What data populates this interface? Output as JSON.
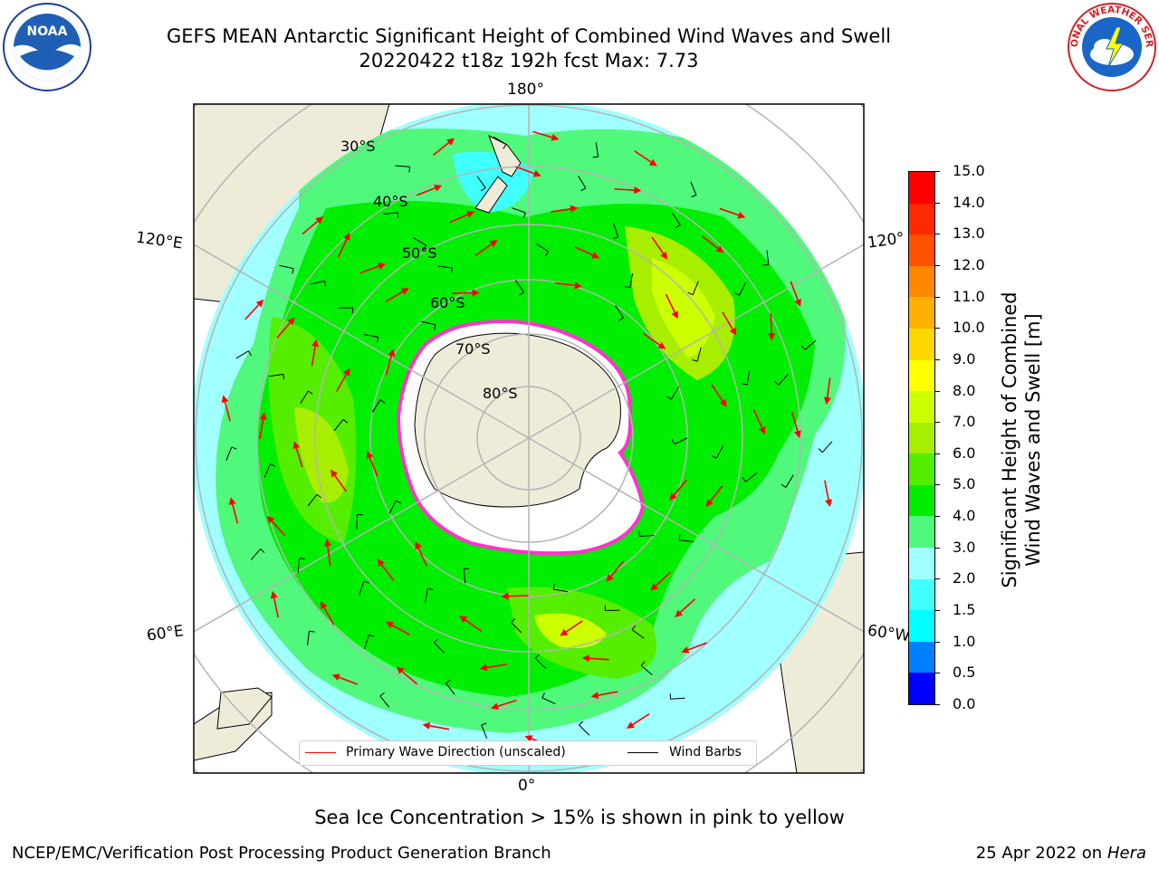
{
  "header": {
    "title_line1": "GEFS MEAN Antarctic Significant Height of Combined Wind Waves and Swell",
    "title_line2": "20220422 t18z 192h fcst   Max: 7.73"
  },
  "logos": {
    "noaa_text": "NOAA",
    "nws_name": "NATIONAL WEATHER SERVICE"
  },
  "map": {
    "lon_labels": {
      "top": "180°",
      "bottom": "0°",
      "left_upper": "120°E",
      "left_lower": "60°E",
      "right_upper": "120°",
      "right_lower": "60°W"
    },
    "lat_labels": [
      "30°S",
      "40°S",
      "50°S",
      "60°S",
      "70°S",
      "80°S"
    ],
    "colors": {
      "land": "#eeecd9",
      "ocean_out": "#ffffff",
      "ice": "#ffffff",
      "grid": "#b4b4b4",
      "arrow": "#ff0000",
      "barb": "#000000"
    }
  },
  "legend": {
    "wave_direction_label": "Primary Wave Direction (unscaled)",
    "wind_barbs_label": "Wind Barbs",
    "wave_color": "#ff0000",
    "barb_color": "#000000"
  },
  "colorbar": {
    "title_line1": "Significant Height of Combined",
    "title_line2": "Wind Waves and Swell [m]",
    "ticks": [
      "0.0",
      "0.5",
      "1.0",
      "1.5",
      "2.0",
      "3.0",
      "4.0",
      "5.0",
      "6.0",
      "7.0",
      "8.0",
      "9.0",
      "10.0",
      "11.0",
      "12.0",
      "13.0",
      "14.0",
      "15.0"
    ],
    "colors": [
      "#0000ff",
      "#0080ff",
      "#00ffff",
      "#40ffff",
      "#a0ffff",
      "#50f87c",
      "#00ee00",
      "#55ee00",
      "#a8ee00",
      "#ccff00",
      "#ffff00",
      "#ffd800",
      "#ffb000",
      "#ff8800",
      "#ff5000",
      "#ff2800",
      "#ff0000"
    ]
  },
  "footer": {
    "sea_ice_note": "Sea Ice Concentration > 15% is shown in pink to yellow",
    "branch": "NCEP/EMC/Verification Post Processing Product Generation Branch",
    "date": "25 Apr 2022 on",
    "host": "Hera"
  }
}
